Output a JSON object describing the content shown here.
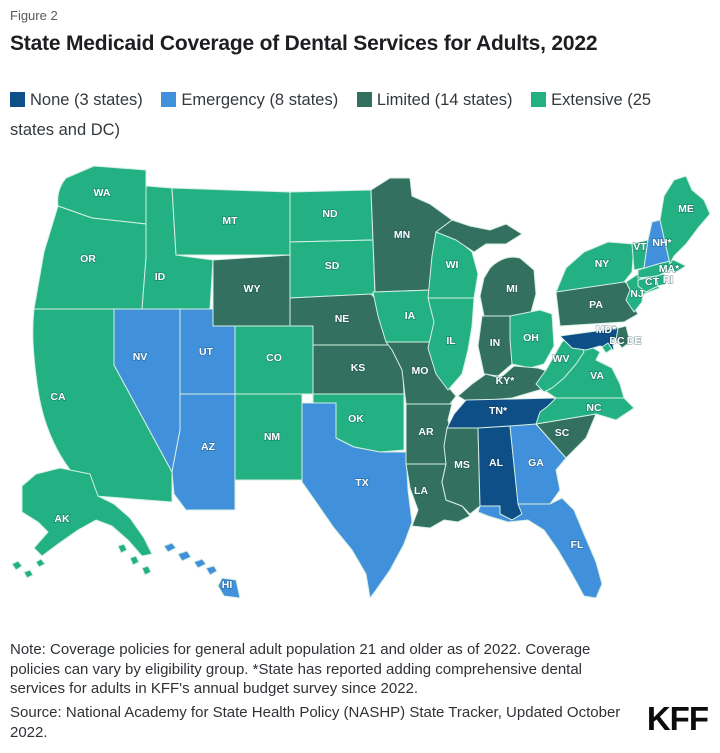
{
  "figure_label": "Figure 2",
  "title": "State Medicaid Coverage of Dental Services for Adults, 2022",
  "legend": {
    "items": [
      {
        "key": "none",
        "label": "None (3 states)",
        "color": "#0E4F88"
      },
      {
        "key": "emergency",
        "label": "Emergency (8 states)",
        "color": "#4190DB"
      },
      {
        "key": "limited",
        "label": "Limited (14 states)",
        "color": "#34705F"
      },
      {
        "key": "extensive",
        "label": "Extensive (25 states and DC)",
        "color": "#23B183"
      }
    ]
  },
  "note": "Note: Coverage policies for general adult population 21 and older as of 2022. Coverage policies can vary by eligibility group. *State has reported adding comprehensive dental services for adults in KFF's annual budget survey since 2022.",
  "source": "Source: National Academy for State Health Policy (NASHP) State Tracker, Updated October 2022.",
  "logo": "KFF",
  "chart_data": {
    "type": "choropleth",
    "title": "State Medicaid Coverage of Dental Services for Adults, 2022",
    "legend_position": "top",
    "categories": {
      "none": {
        "label": "None",
        "count": 3,
        "color": "#0E4F88"
      },
      "emergency": {
        "label": "Emergency",
        "count": 8,
        "color": "#4190DB"
      },
      "limited": {
        "label": "Limited",
        "count": 14,
        "color": "#34705F"
      },
      "extensive": {
        "label": "Extensive",
        "count": "25 states and DC",
        "color": "#23B183"
      }
    },
    "states": [
      {
        "code": "WA",
        "label": "WA",
        "category": "extensive"
      },
      {
        "code": "OR",
        "label": "OR",
        "category": "extensive"
      },
      {
        "code": "CA",
        "label": "CA",
        "category": "extensive"
      },
      {
        "code": "ID",
        "label": "ID",
        "category": "extensive"
      },
      {
        "code": "NV",
        "label": "NV",
        "category": "emergency"
      },
      {
        "code": "UT",
        "label": "UT",
        "category": "emergency"
      },
      {
        "code": "AZ",
        "label": "AZ",
        "category": "emergency"
      },
      {
        "code": "MT",
        "label": "MT",
        "category": "extensive"
      },
      {
        "code": "WY",
        "label": "WY",
        "category": "limited"
      },
      {
        "code": "CO",
        "label": "CO",
        "category": "extensive"
      },
      {
        "code": "NM",
        "label": "NM",
        "category": "extensive"
      },
      {
        "code": "ND",
        "label": "ND",
        "category": "extensive"
      },
      {
        "code": "SD",
        "label": "SD",
        "category": "extensive"
      },
      {
        "code": "NE",
        "label": "NE",
        "category": "limited"
      },
      {
        "code": "KS",
        "label": "KS",
        "category": "limited"
      },
      {
        "code": "OK",
        "label": "OK",
        "category": "extensive"
      },
      {
        "code": "TX",
        "label": "TX",
        "category": "emergency"
      },
      {
        "code": "MN",
        "label": "MN",
        "category": "limited"
      },
      {
        "code": "IA",
        "label": "IA",
        "category": "extensive"
      },
      {
        "code": "MO",
        "label": "MO",
        "category": "limited"
      },
      {
        "code": "AR",
        "label": "AR",
        "category": "limited"
      },
      {
        "code": "LA",
        "label": "LA",
        "category": "limited"
      },
      {
        "code": "WI",
        "label": "WI",
        "category": "extensive"
      },
      {
        "code": "IL",
        "label": "IL",
        "category": "extensive"
      },
      {
        "code": "MI",
        "label": "MI",
        "category": "limited"
      },
      {
        "code": "IN",
        "label": "IN",
        "category": "limited"
      },
      {
        "code": "OH",
        "label": "OH",
        "category": "extensive"
      },
      {
        "code": "KY",
        "label": "KY*",
        "category": "limited"
      },
      {
        "code": "TN",
        "label": "TN*",
        "category": "none"
      },
      {
        "code": "MS",
        "label": "MS",
        "category": "limited"
      },
      {
        "code": "AL",
        "label": "AL",
        "category": "none"
      },
      {
        "code": "GA",
        "label": "GA",
        "category": "emergency"
      },
      {
        "code": "FL",
        "label": "FL",
        "category": "emergency"
      },
      {
        "code": "SC",
        "label": "SC",
        "category": "limited"
      },
      {
        "code": "NC",
        "label": "NC",
        "category": "extensive"
      },
      {
        "code": "VA",
        "label": "VA",
        "category": "extensive"
      },
      {
        "code": "WV",
        "label": "WV",
        "category": "extensive"
      },
      {
        "code": "PA",
        "label": "PA",
        "category": "limited"
      },
      {
        "code": "NY",
        "label": "NY",
        "category": "extensive"
      },
      {
        "code": "NJ",
        "label": "NJ",
        "category": "extensive"
      },
      {
        "code": "MD",
        "label": "MD*",
        "category": "none"
      },
      {
        "code": "DE",
        "label": "DE",
        "category": "limited"
      },
      {
        "code": "DC",
        "label": "DC",
        "category": "extensive"
      },
      {
        "code": "VT",
        "label": "VT",
        "category": "extensive"
      },
      {
        "code": "NH",
        "label": "NH*",
        "category": "emergency"
      },
      {
        "code": "MA",
        "label": "MA*",
        "category": "extensive"
      },
      {
        "code": "CT",
        "label": "CT",
        "category": "extensive"
      },
      {
        "code": "RI",
        "label": "RI",
        "category": "extensive"
      },
      {
        "code": "ME",
        "label": "ME",
        "category": "extensive"
      },
      {
        "code": "AK",
        "label": "AK",
        "category": "extensive"
      },
      {
        "code": "HI",
        "label": "HI",
        "category": "emergency"
      }
    ]
  }
}
